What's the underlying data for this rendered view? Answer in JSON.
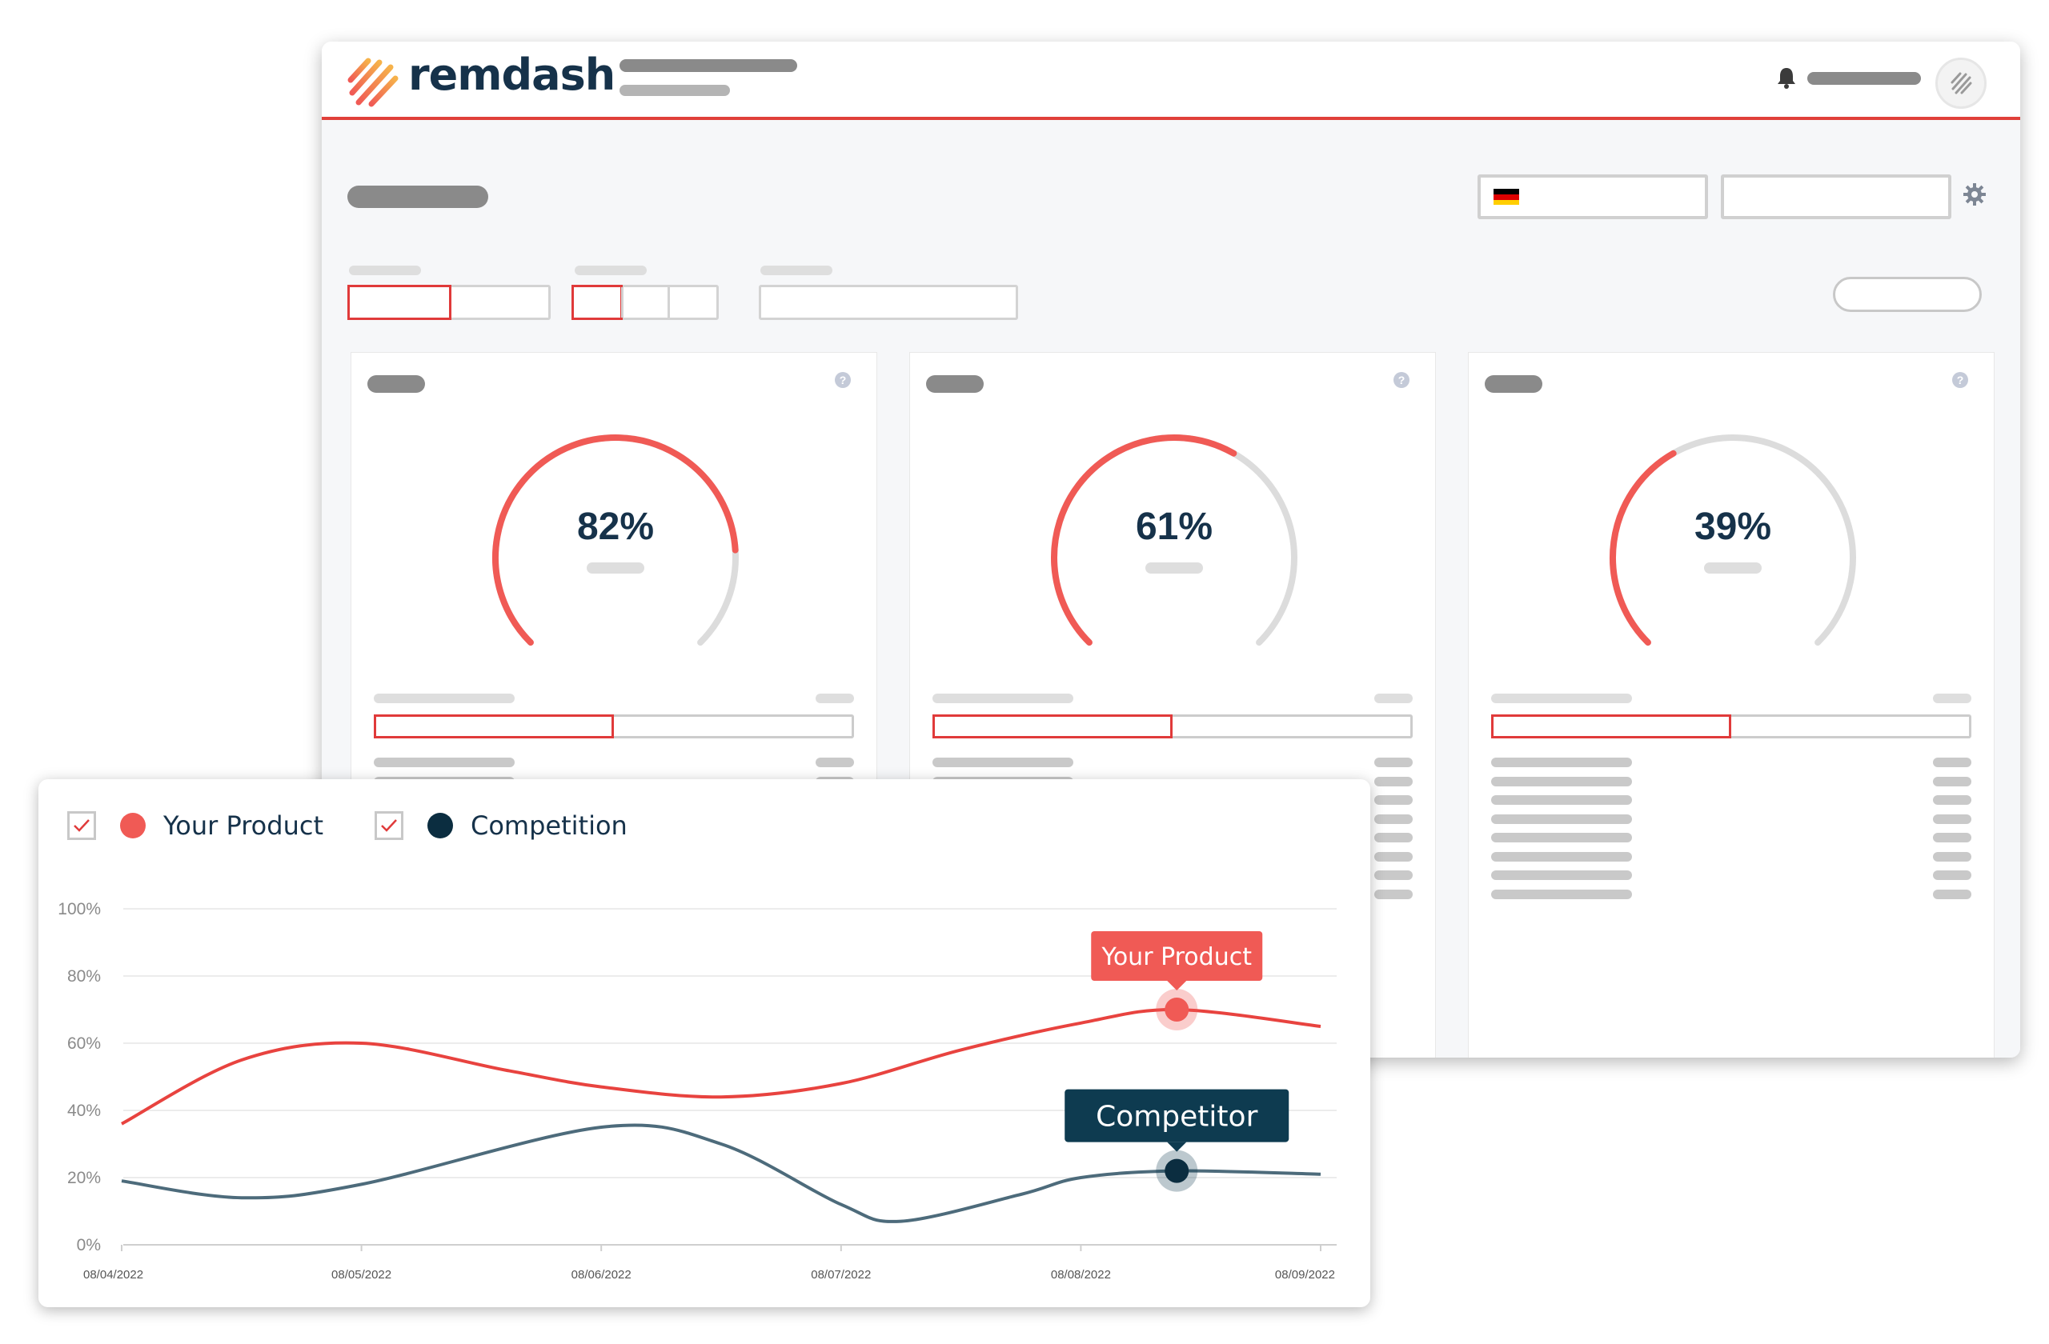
{
  "app": {
    "name": "remdash",
    "brand_color": "#e0403a",
    "navy": "#16324a"
  },
  "header": {
    "icons": [
      "logo-icon",
      "bell-icon",
      "avatar-icon"
    ]
  },
  "toolbar": {
    "country_flag": "germany-flag-icon",
    "icons": [
      "gear-icon"
    ]
  },
  "gauges": [
    {
      "value": 82,
      "label": "82%"
    },
    {
      "value": 61,
      "label": "61%"
    },
    {
      "value": 39,
      "label": "39%"
    }
  ],
  "gauge_colors": {
    "active": "#f05a55",
    "track": "#dcdcdc"
  },
  "legend": {
    "items": [
      {
        "label": "Your Product",
        "checked": true,
        "color": "#f05a55"
      },
      {
        "label": "Competition",
        "checked": true,
        "color": "#0b2d40"
      }
    ]
  },
  "chart_data": {
    "type": "line",
    "x": [
      "08/04/2022",
      "08/05/2022",
      "08/06/2022",
      "08/07/2022",
      "08/08/2022",
      "08/09/2022"
    ],
    "y_ticks": [
      "0%",
      "20%",
      "40%",
      "60%",
      "80%",
      "100%"
    ],
    "ylim": [
      0,
      100
    ],
    "grid": true,
    "series": [
      {
        "name": "Your Product",
        "color": "#e8433f",
        "points": [
          [
            0,
            36
          ],
          [
            0.5,
            55
          ],
          [
            1,
            60
          ],
          [
            1.6,
            52
          ],
          [
            2,
            47
          ],
          [
            2.5,
            44
          ],
          [
            3,
            48
          ],
          [
            3.5,
            58
          ],
          [
            4,
            66
          ],
          [
            4.4,
            70
          ],
          [
            5,
            65
          ]
        ]
      },
      {
        "name": "Competition",
        "color": "#4d6b7b",
        "points": [
          [
            0,
            19
          ],
          [
            0.5,
            14
          ],
          [
            1,
            18
          ],
          [
            2,
            35
          ],
          [
            2.5,
            30
          ],
          [
            3,
            12
          ],
          [
            3.25,
            7
          ],
          [
            3.75,
            15
          ],
          [
            4,
            20
          ],
          [
            4.4,
            22
          ],
          [
            5,
            21
          ]
        ]
      }
    ],
    "annotations": [
      {
        "label": "Your Product",
        "series": "Your Product",
        "x": 4.4,
        "y": 70
      },
      {
        "label": "Competitor",
        "series": "Competition",
        "x": 4.4,
        "y": 22
      }
    ]
  }
}
